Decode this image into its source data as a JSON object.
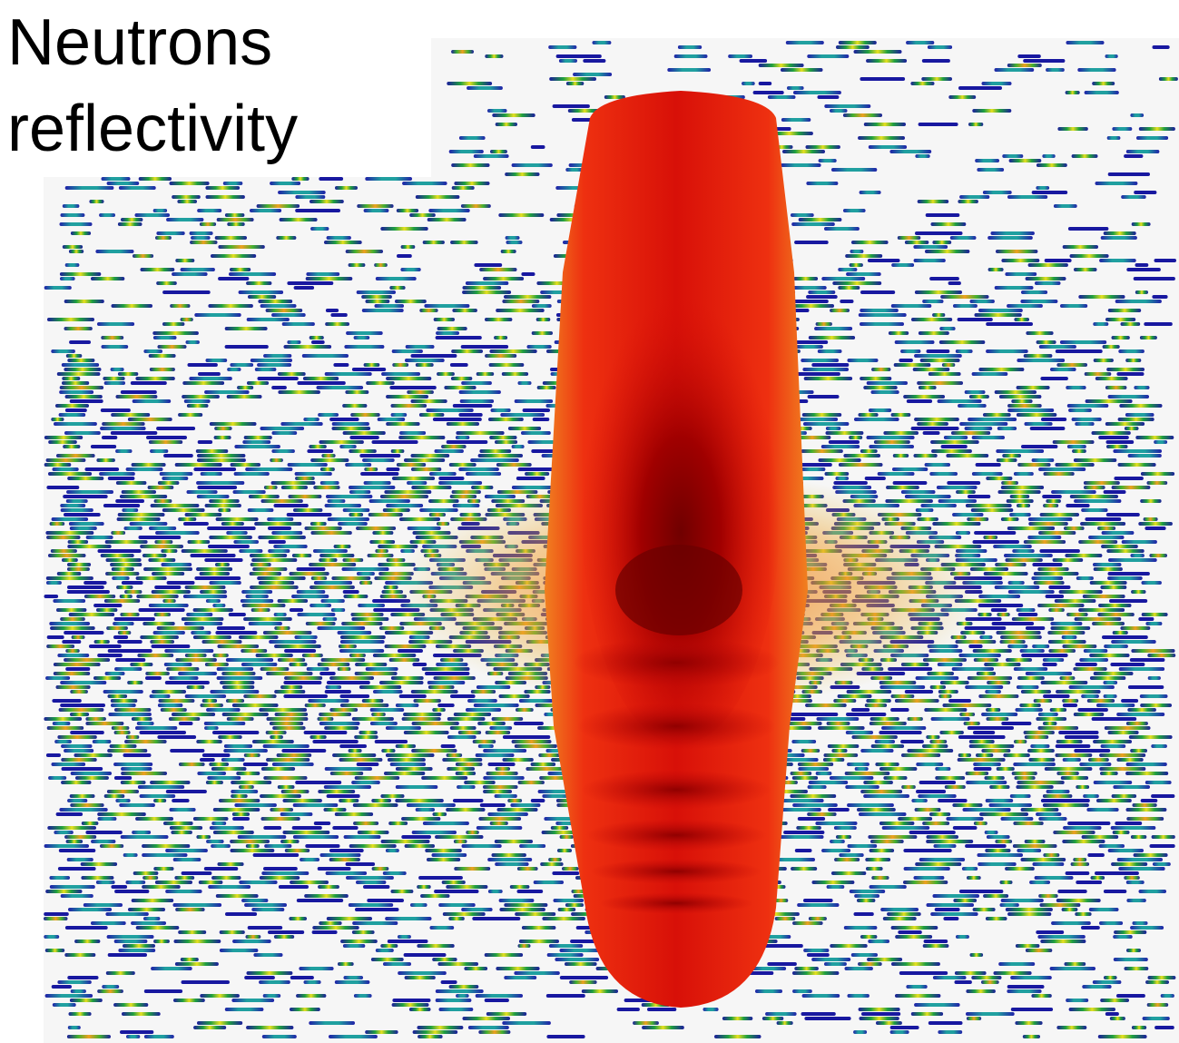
{
  "label": [
    "Neutrons",
    "reflectivity"
  ]
}
